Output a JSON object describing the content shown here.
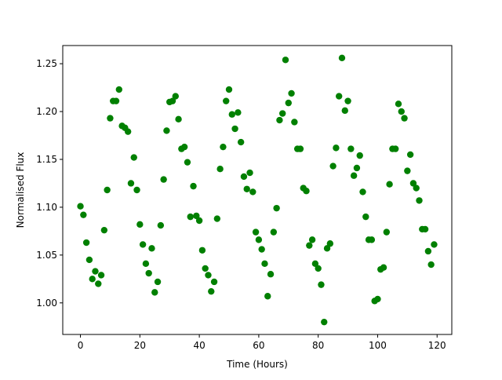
{
  "chart_data": {
    "type": "scatter",
    "x_label": "Time (Hours)",
    "y_label": "Normalised Flux",
    "color": "#008000",
    "x": [
      0,
      1,
      2,
      3,
      4,
      5,
      6,
      7,
      8,
      9,
      10,
      11,
      12,
      13,
      14,
      15,
      16,
      17,
      18,
      19,
      20,
      21,
      22,
      23,
      24,
      25,
      26,
      27,
      28,
      29,
      30,
      31,
      32,
      33,
      34,
      35,
      36,
      37,
      38,
      39,
      40,
      41,
      42,
      43,
      44,
      45,
      46,
      47,
      48,
      49,
      50,
      51,
      52,
      53,
      54,
      55,
      56,
      57,
      58,
      59,
      60,
      61,
      62,
      63,
      64,
      65,
      66,
      67,
      68,
      69,
      70,
      71,
      72,
      73,
      74,
      75,
      76,
      77,
      78,
      79,
      80,
      81,
      82,
      83,
      84,
      85,
      86,
      87,
      88,
      89,
      90,
      91,
      92,
      93,
      94,
      95,
      96,
      97,
      98,
      99,
      100,
      101,
      102,
      103,
      104,
      105,
      106,
      107,
      108,
      109,
      110,
      111,
      112,
      113,
      114,
      115,
      116,
      117,
      118,
      119
    ],
    "values": [
      1.101,
      1.092,
      1.063,
      1.045,
      1.025,
      1.033,
      1.02,
      1.029,
      1.076,
      1.118,
      1.193,
      1.211,
      1.211,
      1.223,
      1.185,
      1.183,
      1.179,
      1.125,
      1.152,
      1.118,
      1.082,
      1.061,
      1.041,
      1.031,
      1.057,
      1.011,
      1.022,
      1.081,
      1.129,
      1.18,
      1.21,
      1.211,
      1.216,
      1.192,
      1.161,
      1.163,
      1.147,
      1.09,
      1.122,
      1.091,
      1.086,
      1.055,
      1.036,
      1.029,
      1.012,
      1.022,
      1.088,
      1.14,
      1.163,
      1.211,
      1.223,
      1.197,
      1.182,
      1.199,
      1.168,
      1.132,
      1.119,
      1.136,
      1.116,
      1.074,
      1.066,
      1.056,
      1.041,
      1.007,
      1.03,
      1.074,
      1.099,
      1.191,
      1.198,
      1.254,
      1.209,
      1.219,
      1.189,
      1.161,
      1.161,
      1.12,
      1.117,
      1.06,
      1.066,
      1.041,
      1.036,
      1.019,
      0.98,
      1.057,
      1.062,
      1.143,
      1.162,
      1.216,
      1.256,
      1.201,
      1.211,
      1.161,
      1.133,
      1.141,
      1.154,
      1.116,
      1.09,
      1.066,
      1.066,
      1.002,
      1.004,
      1.035,
      1.037,
      1.074,
      1.124,
      1.161,
      1.161,
      1.208,
      1.2,
      1.193,
      1.138,
      1.155,
      1.125,
      1.12,
      1.107,
      1.077,
      1.077,
      1.054,
      1.04,
      1.061
    ],
    "xlim": [
      -5.95,
      124.95
    ],
    "ylim": [
      0.967,
      1.269
    ],
    "xticks": [
      0,
      20,
      40,
      60,
      80,
      100,
      120
    ],
    "yticks": [
      {
        "value": 1.0,
        "label": "1.00"
      },
      {
        "value": 1.05,
        "label": "1.05"
      },
      {
        "value": 1.1,
        "label": "1.10"
      },
      {
        "value": 1.15,
        "label": "1.15"
      },
      {
        "value": 1.2,
        "label": "1.20"
      },
      {
        "value": 1.25,
        "label": "1.25"
      }
    ],
    "grid": false
  }
}
